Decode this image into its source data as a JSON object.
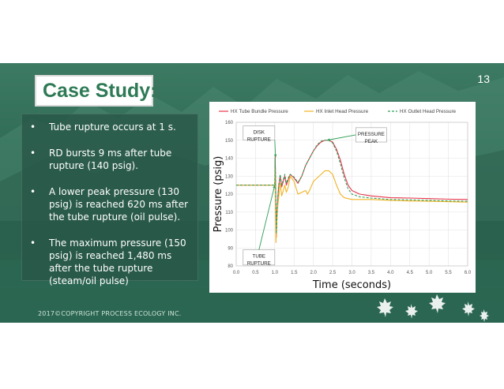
{
  "slide": {
    "title": "Case Study:",
    "page_number": "13",
    "footer": "2017©COPYRIGHT PROCESS ECOLOGY INC.",
    "colors": {
      "background": "#2f6b55",
      "title": "#2d7a55",
      "panel": "#285646"
    }
  },
  "bullets": [
    {
      "text": "Tube rupture occurs at 1 s."
    },
    {
      "text": "RD bursts 9 ms after tube rupture (140 psig)."
    },
    {
      "text": "A lower peak pressure (130 psig) is reached 620 ms after the tube rupture (oil pulse)."
    },
    {
      "text": "The maximum  pressure (150 psig) is reached 1,480 ms after the tube rupture (steam/oil pulse)"
    }
  ],
  "chart_data": {
    "type": "line",
    "title": "",
    "xlabel": "Time (seconds)",
    "ylabel": "Pressure (psig)",
    "xlim": [
      0,
      6
    ],
    "ylim": [
      80,
      160
    ],
    "xticks": [
      "0.0",
      "0.5",
      "1.0",
      "1.5",
      "2.0",
      "2.5",
      "3.0",
      "3.5",
      "4.0",
      "4.5",
      "5.0",
      "5.5",
      "6.0"
    ],
    "yticks": [
      "80",
      "90",
      "100",
      "110",
      "120",
      "130",
      "140",
      "150",
      "160"
    ],
    "grid": true,
    "legend_position": "top",
    "series": [
      {
        "name": "HX Tube Bundle Pressure",
        "color": "#e8344a",
        "dash": "solid",
        "points": [
          [
            0,
            125
          ],
          [
            0.5,
            125
          ],
          [
            0.99,
            125
          ],
          [
            1.0,
            125
          ],
          [
            1.01,
            141
          ],
          [
            1.02,
            128
          ],
          [
            1.04,
            96
          ],
          [
            1.06,
            110
          ],
          [
            1.08,
            118
          ],
          [
            1.1,
            124
          ],
          [
            1.14,
            130
          ],
          [
            1.18,
            124
          ],
          [
            1.22,
            127
          ],
          [
            1.26,
            130
          ],
          [
            1.3,
            125
          ],
          [
            1.35,
            128
          ],
          [
            1.4,
            131
          ],
          [
            1.5,
            129
          ],
          [
            1.6,
            126
          ],
          [
            1.7,
            130
          ],
          [
            1.8,
            136
          ],
          [
            1.9,
            140
          ],
          [
            2.0,
            144
          ],
          [
            2.1,
            147
          ],
          [
            2.2,
            149
          ],
          [
            2.3,
            150
          ],
          [
            2.4,
            150
          ],
          [
            2.5,
            149
          ],
          [
            2.6,
            145
          ],
          [
            2.7,
            139
          ],
          [
            2.8,
            131
          ],
          [
            2.9,
            125
          ],
          [
            3.0,
            122
          ],
          [
            3.2,
            120
          ],
          [
            3.5,
            119
          ],
          [
            4.0,
            118
          ],
          [
            4.5,
            117.8
          ],
          [
            5.0,
            117.5
          ],
          [
            5.5,
            117.2
          ],
          [
            6.0,
            117
          ]
        ]
      },
      {
        "name": "HX Inlet Head Pressure",
        "color": "#f0b323",
        "dash": "solid",
        "points": [
          [
            0,
            125
          ],
          [
            0.5,
            125
          ],
          [
            0.99,
            125
          ],
          [
            1.0,
            125
          ],
          [
            1.01,
            134
          ],
          [
            1.02,
            116
          ],
          [
            1.03,
            93
          ],
          [
            1.05,
            104
          ],
          [
            1.08,
            114
          ],
          [
            1.1,
            118
          ],
          [
            1.14,
            126
          ],
          [
            1.18,
            119
          ],
          [
            1.22,
            122
          ],
          [
            1.26,
            125
          ],
          [
            1.3,
            121
          ],
          [
            1.35,
            124
          ],
          [
            1.4,
            130
          ],
          [
            1.5,
            127
          ],
          [
            1.6,
            120
          ],
          [
            1.7,
            121
          ],
          [
            1.8,
            122
          ],
          [
            1.85,
            120
          ],
          [
            1.9,
            122
          ],
          [
            2.0,
            127
          ],
          [
            2.1,
            129
          ],
          [
            2.2,
            131
          ],
          [
            2.3,
            133
          ],
          [
            2.4,
            133
          ],
          [
            2.5,
            131
          ],
          [
            2.6,
            125
          ],
          [
            2.7,
            120
          ],
          [
            2.8,
            118
          ],
          [
            2.9,
            117.5
          ],
          [
            3.0,
            117
          ],
          [
            3.5,
            117
          ],
          [
            4.0,
            116.5
          ],
          [
            4.5,
            116.2
          ],
          [
            5.0,
            116
          ],
          [
            5.5,
            115.8
          ],
          [
            6.0,
            115.5
          ]
        ]
      },
      {
        "name": "HX Outlet Head Pressure",
        "color": "#2e9e55",
        "dash": "dashed",
        "points": [
          [
            0,
            125
          ],
          [
            0.5,
            125
          ],
          [
            0.99,
            125
          ],
          [
            1.0,
            125
          ],
          [
            1.01,
            140
          ],
          [
            1.02,
            127
          ],
          [
            1.04,
            98
          ],
          [
            1.06,
            111
          ],
          [
            1.08,
            119
          ],
          [
            1.1,
            125
          ],
          [
            1.14,
            131
          ],
          [
            1.18,
            125
          ],
          [
            1.22,
            128
          ],
          [
            1.26,
            131
          ],
          [
            1.3,
            126
          ],
          [
            1.35,
            129
          ],
          [
            1.4,
            131
          ],
          [
            1.5,
            129.5
          ],
          [
            1.6,
            126.5
          ],
          [
            1.7,
            130
          ],
          [
            1.8,
            136
          ],
          [
            1.9,
            140
          ],
          [
            2.0,
            144
          ],
          [
            2.1,
            147.5
          ],
          [
            2.2,
            149.5
          ],
          [
            2.3,
            150
          ],
          [
            2.4,
            150
          ],
          [
            2.5,
            148.5
          ],
          [
            2.6,
            144
          ],
          [
            2.7,
            137
          ],
          [
            2.8,
            129
          ],
          [
            2.9,
            123
          ],
          [
            3.0,
            120
          ],
          [
            3.2,
            118.5
          ],
          [
            3.5,
            117.8
          ],
          [
            4.0,
            117
          ],
          [
            4.5,
            116.8
          ],
          [
            5.0,
            116.5
          ],
          [
            5.5,
            116.2
          ],
          [
            6.0,
            116
          ]
        ]
      }
    ],
    "annotations": [
      {
        "text": [
          "DISK",
          "RUPTURE"
        ],
        "box_x": [
          0.18,
          1.0
        ],
        "box_y": [
          150,
          158
        ],
        "arrow_to": [
          1.02,
          140.5
        ]
      },
      {
        "text": [
          "PRESSURE",
          "PEAK"
        ],
        "box_x": [
          3.1,
          3.9
        ],
        "box_y": [
          149,
          157
        ],
        "arrow_to": [
          2.35,
          150
        ]
      },
      {
        "text": [
          "TUBE",
          "RUPTURE"
        ],
        "box_x": [
          0.18,
          1.0
        ],
        "box_y": [
          80.5,
          89
        ],
        "arrow_to": [
          1.0,
          125
        ]
      }
    ]
  }
}
